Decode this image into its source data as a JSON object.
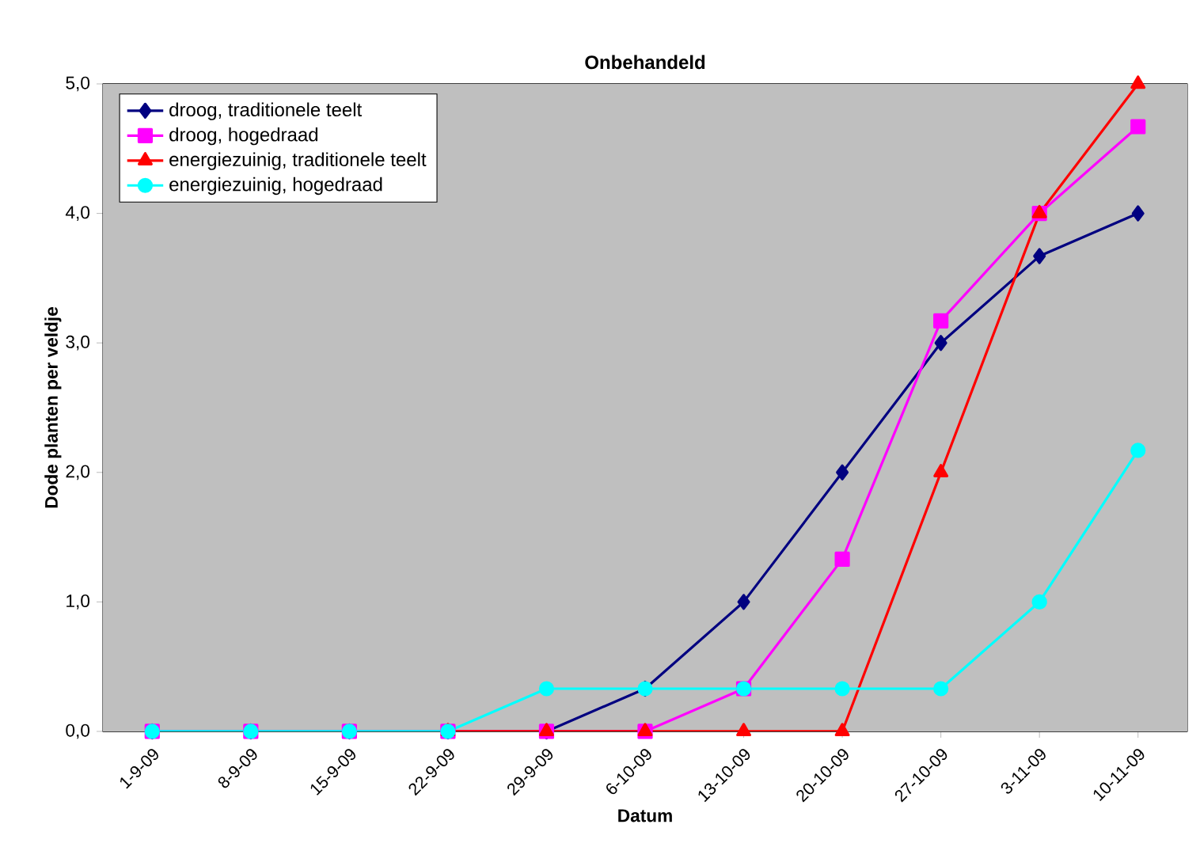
{
  "chart_data": {
    "type": "line",
    "title": "Onbehandeld",
    "xlabel": "Datum",
    "ylabel": "Dode planten per veldje",
    "categories": [
      "1-9-09",
      "8-9-09",
      "15-9-09",
      "22-9-09",
      "29-9-09",
      "6-10-09",
      "13-10-09",
      "20-10-09",
      "27-10-09",
      "3-11-09",
      "10-11-09"
    ],
    "series": [
      {
        "name": "droog, traditionele teelt",
        "color": "#000080",
        "marker": "diamond",
        "values": [
          0,
          0,
          0,
          0,
          0,
          0.33,
          1,
          2,
          3,
          3.67,
          4
        ]
      },
      {
        "name": "droog, hogedraad",
        "color": "#ff00ff",
        "marker": "square",
        "values": [
          0,
          0,
          0,
          0,
          0,
          0,
          0.33,
          1.33,
          3.17,
          4,
          4.67
        ]
      },
      {
        "name": "energiezuinig, traditionele teelt",
        "color": "#ff0000",
        "marker": "triangle",
        "values": [
          null,
          null,
          null,
          0,
          0,
          0,
          0,
          0,
          2,
          4,
          5
        ]
      },
      {
        "name": "energiezuinig, hogedraad",
        "color": "#00ffff",
        "marker": "circle",
        "values": [
          0,
          0,
          0,
          0,
          0.33,
          0.33,
          0.33,
          0.33,
          0.33,
          1,
          2.17
        ]
      }
    ],
    "ylim": [
      0,
      5
    ],
    "yticks": [
      {
        "value": 0,
        "label": "0,0"
      },
      {
        "value": 1,
        "label": "1,0"
      },
      {
        "value": 2,
        "label": "2,0"
      },
      {
        "value": 3,
        "label": "3,0"
      },
      {
        "value": 4,
        "label": "4,0"
      },
      {
        "value": 5,
        "label": "5,0"
      }
    ],
    "grid": "y",
    "legend": "top left"
  }
}
